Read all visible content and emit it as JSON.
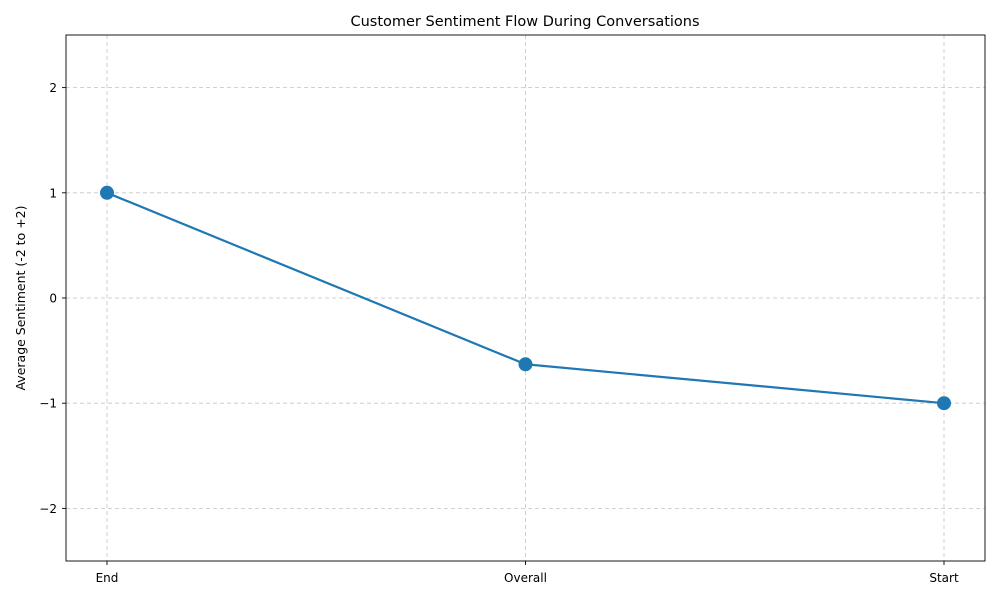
{
  "chart_data": {
    "type": "line",
    "title": "Customer Sentiment Flow During Conversations",
    "xlabel": "",
    "ylabel": "Average Sentiment (-2 to +2)",
    "categories": [
      "End",
      "Overall",
      "Start"
    ],
    "series": [
      {
        "values": [
          1.0,
          -0.63,
          -1.0
        ]
      }
    ],
    "ylim": [
      -2.5,
      2.5
    ],
    "yticks": [
      -2,
      -1,
      0,
      1,
      2
    ],
    "ytick_labels": [
      "−2",
      "−1",
      "0",
      "1",
      "2"
    ],
    "grid": true,
    "colors": {
      "line": "#1f77b4",
      "marker": "#1f77b4"
    }
  }
}
